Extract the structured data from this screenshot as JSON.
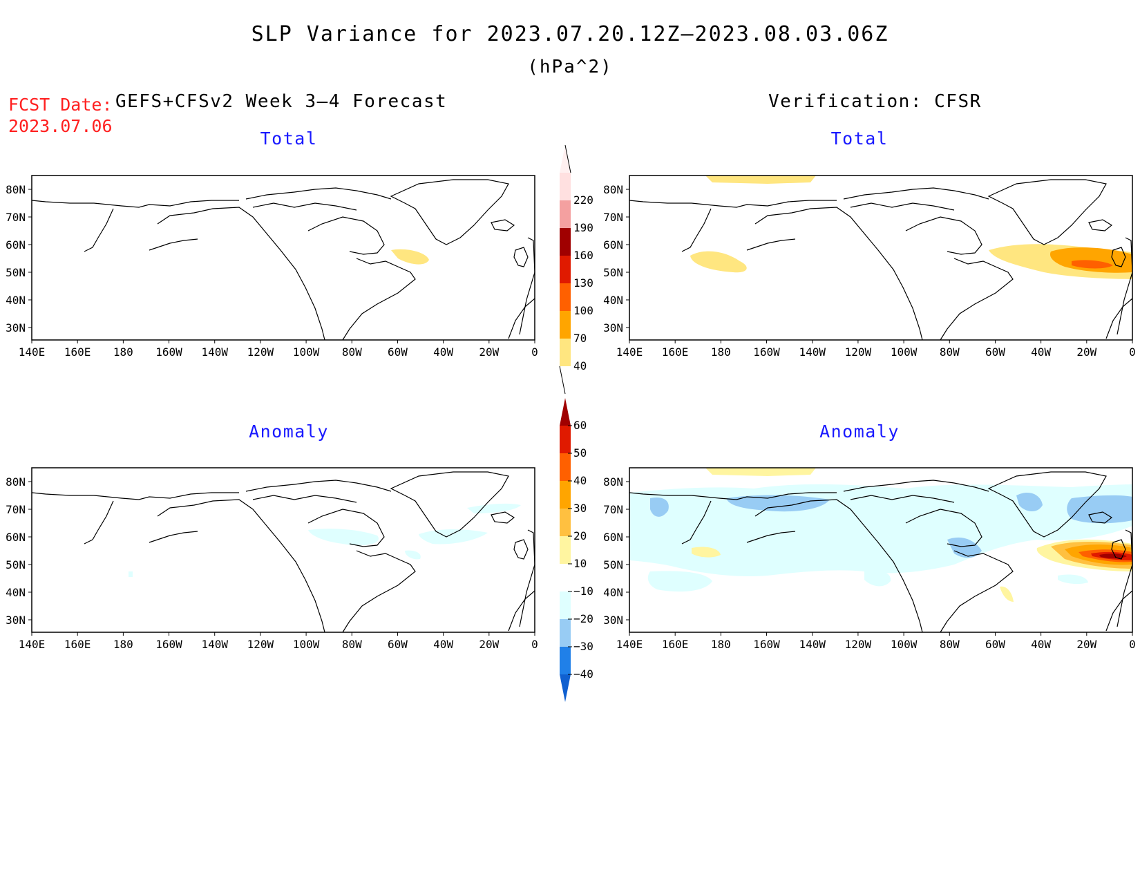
{
  "title": "SLP Variance for 2023.07.20.12Z–2023.08.03.06Z",
  "units": "(hPa^2)",
  "fcst_label": "FCST Date:",
  "fcst_date": "2023.07.06",
  "left_header": "GEFS+CFSv2 Week 3–4 Forecast",
  "right_header": "Verification: CFSR",
  "panels": {
    "tl": {
      "subtitle": "Total"
    },
    "tr": {
      "subtitle": "Total"
    },
    "bl": {
      "subtitle": "Anomaly"
    },
    "br": {
      "subtitle": "Anomaly"
    }
  },
  "lon_labels": [
    "140E",
    "160E",
    "180",
    "160W",
    "140W",
    "120W",
    "100W",
    "80W",
    "60W",
    "40W",
    "20W",
    "0"
  ],
  "lat_labels": [
    "80N",
    "70N",
    "60N",
    "50N",
    "40N",
    "30N"
  ],
  "total_colorbar": {
    "levels": [
      "40",
      "70",
      "100",
      "130",
      "160",
      "190",
      "220"
    ],
    "colors": [
      "#ffe680",
      "#ffa500",
      "#ff6000",
      "#e01a00",
      "#a00000",
      "#f4a0a0",
      "#ffe0e0"
    ]
  },
  "anomaly_colorbar": {
    "levels": [
      "60",
      "50",
      "40",
      "30",
      "20",
      "10",
      "−10",
      "−20",
      "−30",
      "−40"
    ],
    "colors": {
      "top": "#a00000",
      "b60_50": "#e01a00",
      "b50_40": "#ff6000",
      "b40_30": "#ffa500",
      "b30_20": "#ffc040",
      "b20_10": "#fff5a0",
      "b10_m10": "#ffffff",
      "bm10_m20": "#dfffff",
      "bm20_m30": "#98ccf4",
      "bm30_m40": "#2080e8",
      "bottom": "#1060d0"
    }
  }
}
